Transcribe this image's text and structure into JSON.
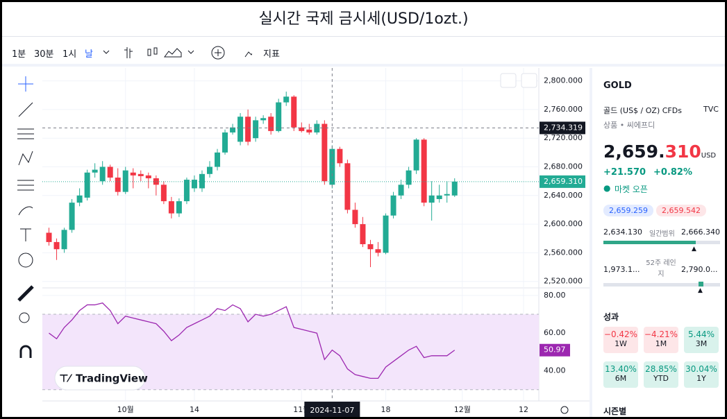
{
  "title": "실시간 국제 금시세(USD/1ozt.)",
  "toolbar": {
    "intervals": [
      "1분",
      "30분",
      "1시",
      "날"
    ],
    "indicators": "지표"
  },
  "sidebar": {
    "symbol": "GOLD",
    "description": "골드 (US$ / OZ) CFDs",
    "exchange": "TVC",
    "category": "상품 • 씨에프디",
    "price_main": "2,659.",
    "price_decimals": "310",
    "currency": "USD",
    "change": "+21.570",
    "change_pct": "+0.82%",
    "market_status": "마켓 오픈",
    "bid": "2,659.259",
    "ask": "2,659.542",
    "day_low": "2,634.130",
    "day_range_label": "일간범위",
    "day_high": "2,666.340",
    "year_low": "1,973.1...",
    "year_range_label": "52주 레인지",
    "year_high": "2,790.0...",
    "performance_title": "성과",
    "performance": [
      {
        "value": "−0.42%",
        "period": "1W"
      },
      {
        "value": "−4.21%",
        "period": "1M"
      },
      {
        "value": "5.44%",
        "period": "3M"
      },
      {
        "value": "13.40%",
        "period": "6M"
      },
      {
        "value": "28.85%",
        "period": "YTD"
      },
      {
        "value": "30.04%",
        "period": "1Y"
      }
    ],
    "seasonal_title": "시즌별"
  },
  "watermark": "TradingView",
  "chart_data": [
    {
      "type": "candlestick",
      "up_color": "#22ab94",
      "down_color": "#f23645",
      "open": [
        2588,
        2575,
        2565,
        2592,
        2630,
        2637,
        2672,
        2660,
        2680,
        2665,
        2645,
        2672,
        2670,
        2668,
        2664,
        2655,
        2632,
        2615,
        2632,
        2650,
        2650,
        2670,
        2680,
        2700,
        2728,
        2715,
        2750,
        2720,
        2745,
        2750,
        2730,
        2770,
        2778,
        2735,
        2732,
        2728,
        2740,
        2655,
        2705,
        2685,
        2620,
        2600,
        2572,
        2565,
        2560,
        2612,
        2640,
        2655,
        2675,
        2718,
        2630,
        2635,
        2640,
        2640
      ],
      "close": [
        2575,
        2565,
        2592,
        2630,
        2640,
        2672,
        2676,
        2680,
        2665,
        2645,
        2675,
        2668,
        2667,
        2664,
        2655,
        2632,
        2615,
        2632,
        2662,
        2662,
        2670,
        2680,
        2700,
        2728,
        2735,
        2750,
        2715,
        2745,
        2748,
        2730,
        2770,
        2778,
        2735,
        2730,
        2728,
        2740,
        2660,
        2705,
        2685,
        2620,
        2600,
        2572,
        2565,
        2560,
        2612,
        2640,
        2655,
        2675,
        2718,
        2630,
        2640,
        2640,
        2642,
        2659.31
      ],
      "high": [
        2595,
        2580,
        2595,
        2635,
        2650,
        2676,
        2685,
        2688,
        2683,
        2678,
        2680,
        2678,
        2675,
        2672,
        2668,
        2660,
        2638,
        2636,
        2665,
        2668,
        2675,
        2688,
        2705,
        2732,
        2740,
        2755,
        2760,
        2750,
        2752,
        2755,
        2775,
        2785,
        2780,
        2742,
        2740,
        2745,
        2745,
        2710,
        2708,
        2690,
        2630,
        2610,
        2578,
        2575,
        2615,
        2645,
        2662,
        2680,
        2720,
        2720,
        2660,
        2655,
        2660,
        2664
      ],
      "low": [
        2570,
        2550,
        2560,
        2588,
        2625,
        2633,
        2665,
        2655,
        2660,
        2640,
        2642,
        2650,
        2660,
        2650,
        2640,
        2628,
        2608,
        2610,
        2628,
        2645,
        2645,
        2665,
        2675,
        2697,
        2725,
        2710,
        2710,
        2715,
        2740,
        2725,
        2728,
        2765,
        2730,
        2728,
        2725,
        2725,
        2655,
        2650,
        2680,
        2615,
        2595,
        2568,
        2540,
        2555,
        2558,
        2608,
        2635,
        2650,
        2670,
        2625,
        2605,
        2630,
        2630,
        2638
      ],
      "last_label": "2,659.310",
      "crosshair": {
        "value": 2734.319,
        "label": "2,734.319"
      },
      "crosshair_x": {
        "value": 37,
        "label": "2024-11-07"
      },
      "xlim": [
        -0.5,
        64
      ],
      "xticks": [
        {
          "value": 10,
          "label": "10월"
        },
        {
          "value": 19,
          "label": "14"
        },
        {
          "value": 33,
          "label": "11월"
        },
        {
          "value": 44,
          "label": "18"
        },
        {
          "value": 54,
          "label": "12월"
        },
        {
          "value": 62,
          "label": "12"
        }
      ],
      "ylim": [
        2511,
        2818
      ],
      "yticks": [
        {
          "value": 2520,
          "label": "2,520.000"
        },
        {
          "value": 2560,
          "label": "2,560.000"
        },
        {
          "value": 2600,
          "label": "2,600.000"
        },
        {
          "value": 2640,
          "label": "2,640.000"
        },
        {
          "value": 2680,
          "label": "2,680.000"
        },
        {
          "value": 2720,
          "label": "2,720.000"
        },
        {
          "value": 2760,
          "label": "2,760.000"
        },
        {
          "value": 2800,
          "label": "2,800.000"
        }
      ]
    },
    {
      "type": "line",
      "color": "#9c27b0",
      "band": [
        30,
        70
      ],
      "band_color": "#f3e5fb",
      "values": [
        60,
        57,
        63,
        67,
        72,
        75,
        75,
        76,
        72,
        65,
        69,
        68,
        67,
        66,
        65,
        61,
        56,
        59,
        63,
        65,
        67,
        69,
        73,
        72,
        75,
        73,
        66,
        70,
        69,
        70,
        72,
        74,
        63,
        62,
        61,
        60,
        46,
        51,
        48,
        41,
        38,
        37,
        36,
        36,
        42,
        45,
        48,
        51,
        53,
        47,
        48,
        48,
        48,
        50.97
      ],
      "xlim": [
        -0.5,
        64
      ],
      "ylim": [
        24,
        84
      ],
      "yticks": [
        {
          "value": 40,
          "label": "40.00"
        },
        {
          "value": 60,
          "label": "60.00"
        },
        {
          "value": 80,
          "label": "80.00"
        }
      ]
    }
  ]
}
